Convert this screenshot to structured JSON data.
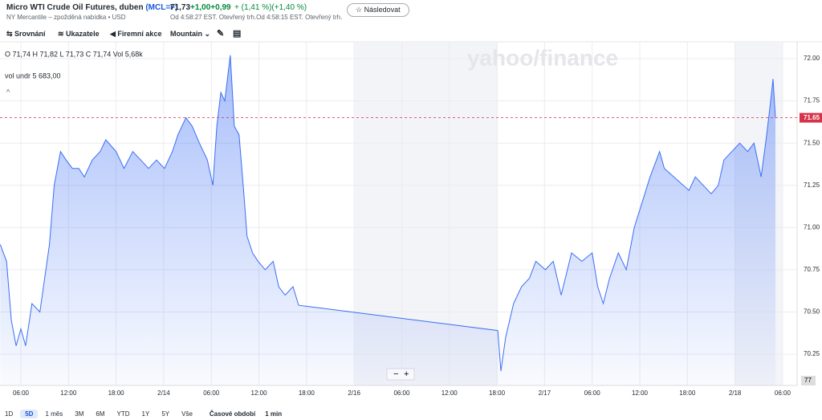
{
  "header": {
    "title": "Micro WTI Crude Oil Futures, duben",
    "symbol": "(MCL=F)",
    "subtitle": "NY Mercantile – zpožděná nabídka • USD",
    "price": "71,73",
    "change": "+1,00+0,99",
    "change_pct": "+ (1,41 %)(+1,40 %)",
    "market_time": "Od 4:58:27 EST. Otevřený trh.Od 4:58:15 EST. Otevřený trh.",
    "follow": "☆ Následovat"
  },
  "toolbar": {
    "items": [
      "Srovnání",
      "Ukazatele",
      "Firemní akce",
      "Mountain"
    ]
  },
  "ohlc": {
    "line": "O 71,74  H 71,82  L 71,73  C 71,74  Vol 5,68k",
    "volume": "vol undr  5 683,00"
  },
  "chart_data": {
    "type": "area",
    "color": "#3b6ef5",
    "watermark": "yahoo/finance",
    "volume_axis_label": "77",
    "current_price": 71.65,
    "current_price_color": "#d6334a",
    "x": [
      -2.6,
      -1.8,
      -1.2,
      -0.6,
      0,
      0.6,
      1.4,
      2.4,
      3.6,
      4.2,
      5.0,
      5.7,
      6.5,
      7.3,
      8.0,
      9.0,
      10.0,
      10.7,
      12.0,
      13.0,
      14.1,
      15.1,
      16.1,
      17.1,
      18.1,
      19.1,
      19.8,
      20.8,
      21.6,
      22.5,
      23.5,
      24.2,
      24.7,
      25.2,
      25.7,
      26.4,
      26.9,
      27.5,
      28.1,
      28.5,
      29.2,
      29.9,
      30.8,
      31.8,
      32.5,
      33.3,
      34.3,
      35.0,
      60.1,
      60.5,
      61.1,
      62.1,
      63.1,
      64.1,
      64.9,
      66.1,
      67.1,
      68.1,
      69.4,
      70.7,
      72.0,
      72.7,
      73.4,
      74.2,
      75.3,
      76.3,
      77.3,
      78.3,
      79.3,
      80.5,
      81.1,
      84.2,
      85.0,
      86.0,
      87.0,
      87.9,
      88.6,
      89.6,
      90.6,
      91.6,
      92.4,
      93.3,
      94.0,
      94.5,
      94.8,
      95.1
    ],
    "values": [
      70.9,
      70.8,
      70.45,
      70.3,
      70.4,
      70.3,
      70.55,
      70.5,
      70.9,
      71.25,
      71.45,
      71.4,
      71.35,
      71.35,
      71.3,
      71.4,
      71.45,
      71.52,
      71.45,
      71.35,
      71.45,
      71.4,
      71.35,
      71.4,
      71.35,
      71.45,
      71.55,
      71.65,
      71.6,
      71.5,
      71.4,
      71.25,
      71.6,
      71.8,
      71.75,
      72.02,
      71.6,
      71.55,
      71.2,
      70.95,
      70.85,
      70.8,
      70.75,
      70.8,
      70.65,
      70.6,
      70.65,
      70.54,
      70.39,
      70.15,
      70.35,
      70.55,
      70.65,
      70.7,
      70.8,
      70.75,
      70.8,
      70.6,
      70.85,
      70.8,
      70.85,
      70.65,
      70.55,
      70.7,
      70.85,
      70.75,
      71.0,
      71.15,
      71.3,
      71.45,
      71.35,
      71.22,
      71.3,
      71.25,
      71.2,
      71.25,
      71.4,
      71.45,
      71.5,
      71.45,
      71.5,
      71.3,
      71.55,
      71.75,
      71.88,
      71.65
    ],
    "xlim": [
      -2.63,
      97.83
    ],
    "ylim": [
      70.065,
      72.1
    ],
    "xticks": [
      {
        "value": 0,
        "label": "06:00"
      },
      {
        "value": 6,
        "label": "12:00"
      },
      {
        "value": 12,
        "label": "18:00"
      },
      {
        "value": 18,
        "label": "2/14"
      },
      {
        "value": 24,
        "label": "06:00"
      },
      {
        "value": 30,
        "label": "12:00"
      },
      {
        "value": 36,
        "label": "18:00"
      },
      {
        "value": 42,
        "label": "2/16"
      },
      {
        "value": 48,
        "label": "06:00"
      },
      {
        "value": 54,
        "label": "12:00"
      },
      {
        "value": 60,
        "label": "18:00"
      },
      {
        "value": 66,
        "label": "2/17"
      },
      {
        "value": 72,
        "label": "06:00"
      },
      {
        "value": 78,
        "label": "12:00"
      },
      {
        "value": 84,
        "label": "18:00"
      },
      {
        "value": 90,
        "label": "2/18"
      },
      {
        "value": 96,
        "label": "06:00"
      }
    ],
    "yticks": [
      {
        "value": 72,
        "label": "72.00"
      },
      {
        "value": 71.75,
        "label": "71.75"
      },
      {
        "value": 71.5,
        "label": "71.50"
      },
      {
        "value": 71.25,
        "label": "71.25"
      },
      {
        "value": 71,
        "label": "71.00"
      },
      {
        "value": 70.75,
        "label": "70.75"
      },
      {
        "value": 70.5,
        "label": "70.50"
      },
      {
        "value": 70.25,
        "label": "70.25"
      }
    ],
    "grid": true
  },
  "range_bar": {
    "periods": [
      "1D",
      "5D",
      "1 měs",
      "3M",
      "6M",
      "YTD",
      "1Y",
      "5Y",
      "Vše"
    ],
    "active": "5D",
    "time_period": "Časové období",
    "interval": "1 min"
  }
}
